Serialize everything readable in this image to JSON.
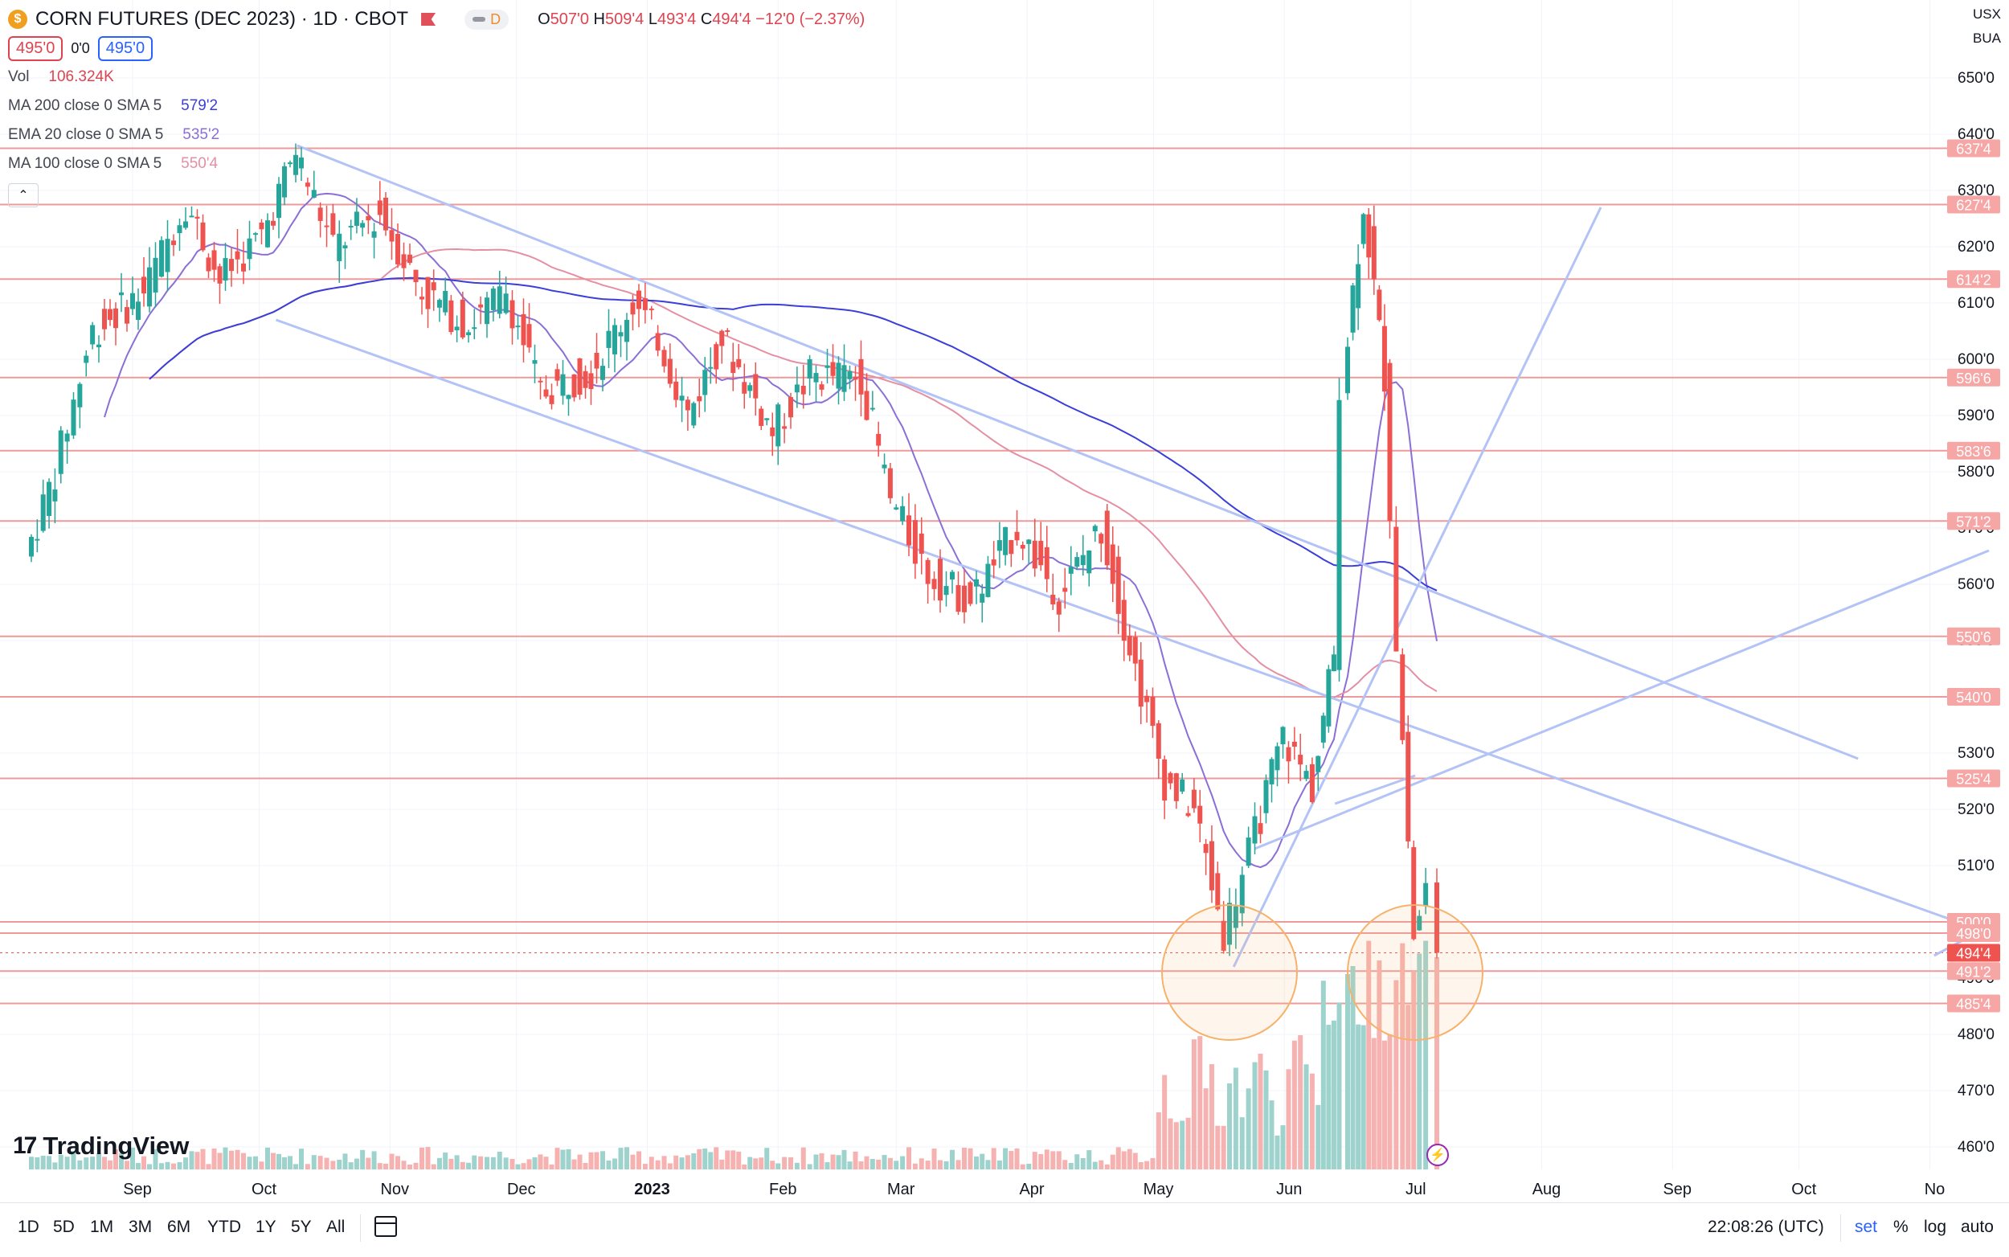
{
  "header": {
    "symbol_title": "CORN FUTURES (DEC 2023) · 1D · CBOT",
    "logo_letter": "$",
    "delay_badge": "D",
    "ohlc": {
      "o_label": "O",
      "o": "507'0",
      "h_label": "H",
      "h": "509'4",
      "l_label": "L",
      "l": "493'4",
      "c_label": "C",
      "c": "494'4",
      "change": "−12'0 (−2.37%)"
    },
    "bid": "495'0",
    "spread": "0'0",
    "ask": "495'0"
  },
  "indicators": [
    {
      "label": "Vol",
      "value": "106.324K",
      "color": "#e0434f"
    },
    {
      "label": "MA 200 close 0 SMA 5",
      "value": "579'2",
      "color": "#3a3fd9"
    },
    {
      "label": "EMA 20 close 0 SMA 5",
      "value": "535'2",
      "color": "#8b6fd6"
    },
    {
      "label": "MA 100 close 0 SMA 5",
      "value": "550'4",
      "color": "#e58fa3"
    }
  ],
  "scale_top": {
    "currency": "USX",
    "unit": "BUA"
  },
  "watermark": "TradingView",
  "toolbar": {
    "ranges": [
      "1D",
      "5D",
      "1M",
      "3M",
      "6M",
      "YTD",
      "1Y",
      "5Y",
      "All"
    ],
    "time": "22:08:26 (UTC)",
    "set": "set",
    "percent": "%",
    "log": "log",
    "auto": "auto"
  },
  "colors": {
    "up": "#26a69a",
    "down": "#ef5350",
    "level": "#ef9a9a",
    "trend": "#b3c3f5",
    "circle": "#f6b26b"
  },
  "chart_data": {
    "type": "candlestick",
    "title": "CORN FUTURES (DEC 2023) · 1D · CBOT",
    "ylim": [
      455,
      656
    ],
    "y_ticks": [
      "460'0",
      "470'0",
      "480'0",
      "490'0",
      "500'0",
      "510'0",
      "520'0",
      "530'0",
      "540'0",
      "550'0",
      "560'0",
      "570'0",
      "580'0",
      "590'0",
      "600'0",
      "610'0",
      "620'0",
      "630'0",
      "640'0",
      "650'0"
    ],
    "x_ticks": [
      "Sep",
      "Oct",
      "Nov",
      "Dec",
      "2023",
      "Feb",
      "Mar",
      "Apr",
      "May",
      "Jun",
      "Jul",
      "Aug",
      "Sep",
      "Oct",
      "No"
    ],
    "price_levels": [
      {
        "label": "637'4",
        "value": 637.5
      },
      {
        "label": "627'4",
        "value": 627.5
      },
      {
        "label": "614'2",
        "value": 614.25
      },
      {
        "label": "596'6",
        "value": 596.75
      },
      {
        "label": "583'6",
        "value": 583.75
      },
      {
        "label": "571'2",
        "value": 571.25
      },
      {
        "label": "550'6",
        "value": 550.75
      },
      {
        "label": "540'0",
        "value": 540.0
      },
      {
        "label": "525'4",
        "value": 525.5
      },
      {
        "label": "500'0",
        "value": 500.0
      },
      {
        "label": "498'0",
        "value": 498.0
      },
      {
        "label": "494'4",
        "value": 494.5,
        "current": true
      },
      {
        "label": "491'2",
        "value": 491.25
      },
      {
        "label": "485'4",
        "value": 485.5
      }
    ],
    "path_points": [
      [
        "2022-08-08",
        565
      ],
      [
        "2022-08-15",
        580
      ],
      [
        "2022-08-24",
        605
      ],
      [
        "2022-09-05",
        612
      ],
      [
        "2022-09-15",
        628
      ],
      [
        "2022-09-23",
        614
      ],
      [
        "2022-10-03",
        622
      ],
      [
        "2022-10-11",
        637
      ],
      [
        "2022-10-20",
        620
      ],
      [
        "2022-10-31",
        626
      ],
      [
        "2022-11-10",
        612
      ],
      [
        "2022-11-21",
        606
      ],
      [
        "2022-11-30",
        612
      ],
      [
        "2022-12-08",
        594
      ],
      [
        "2022-12-20",
        598
      ],
      [
        "2022-12-30",
        610
      ],
      [
        "2023-01-05",
        604
      ],
      [
        "2023-01-12",
        590
      ],
      [
        "2023-01-20",
        604
      ],
      [
        "2023-02-01",
        587
      ],
      [
        "2023-02-10",
        597
      ],
      [
        "2023-02-22",
        597
      ],
      [
        "2023-03-01",
        575
      ],
      [
        "2023-03-10",
        562
      ],
      [
        "2023-03-20",
        557
      ],
      [
        "2023-03-31",
        570
      ],
      [
        "2023-04-10",
        558
      ],
      [
        "2023-04-20",
        570
      ],
      [
        "2023-04-28",
        545
      ],
      [
        "2023-05-05",
        525
      ],
      [
        "2023-05-12",
        520
      ],
      [
        "2023-05-19",
        498
      ],
      [
        "2023-05-25",
        512
      ],
      [
        "2023-06-02",
        533
      ],
      [
        "2023-06-09",
        524
      ],
      [
        "2023-06-14",
        548
      ],
      [
        "2023-06-16",
        596
      ],
      [
        "2023-06-21",
        628
      ],
      [
        "2023-06-26",
        597
      ],
      [
        "2023-06-29",
        550
      ],
      [
        "2023-07-03",
        497
      ],
      [
        "2023-07-06",
        506
      ]
    ],
    "last_bar": {
      "o": 507.0,
      "h": 509.5,
      "l": 493.5,
      "c": 494.5
    },
    "volume_last": "106.324K",
    "moving_averages": [
      {
        "name": "MA 200",
        "last": "579'2"
      },
      {
        "name": "EMA 20",
        "last": "535'2"
      },
      {
        "name": "MA 100",
        "last": "550'4"
      }
    ]
  }
}
